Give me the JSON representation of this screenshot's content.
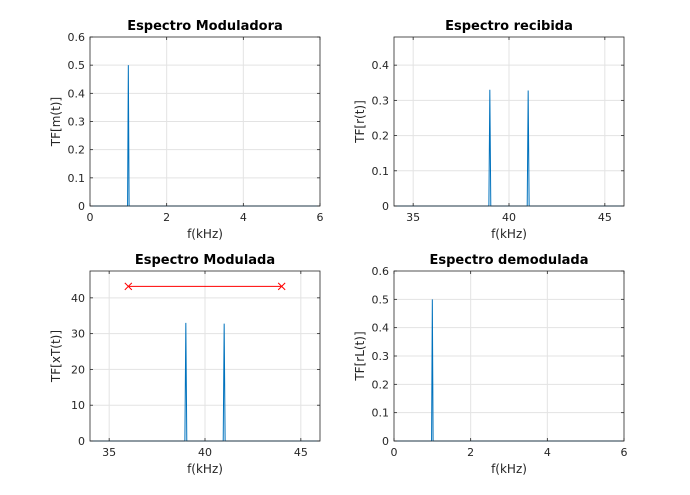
{
  "chart_data": [
    {
      "type": "line",
      "title": "Espectro Moduladora",
      "xlabel": "f(kHz)",
      "ylabel": "TF[m(t)]",
      "xlim": [
        0,
        6
      ],
      "ylim": [
        0,
        0.6
      ],
      "xticks": [
        0,
        2,
        4,
        6
      ],
      "yticks": [
        0,
        0.1,
        0.2,
        0.3,
        0.4,
        0.5,
        0.6
      ],
      "xtick_labels": [
        "0",
        "2",
        "4",
        "6"
      ],
      "ytick_labels": [
        "0",
        "0.1",
        "0.2",
        "0.3",
        "0.4",
        "0.5",
        "0.6"
      ],
      "grid": true,
      "series": [
        {
          "color": "#0072bd",
          "x": [
            0,
            0.98,
            1,
            1.02,
            6
          ],
          "y": [
            0,
            0,
            0.5,
            0,
            0
          ]
        }
      ]
    },
    {
      "type": "line",
      "title": "Espectro recibida",
      "xlabel": "f(kHz)",
      "ylabel": "TF[r(t)]",
      "xlim": [
        34,
        46
      ],
      "ylim": [
        0,
        0.48
      ],
      "xticks": [
        35,
        40,
        45
      ],
      "yticks": [
        0,
        0.1,
        0.2,
        0.3,
        0.4
      ],
      "xtick_labels": [
        "35",
        "40",
        "45"
      ],
      "ytick_labels": [
        "0",
        "0.1",
        "0.2",
        "0.3",
        "0.4"
      ],
      "grid": true,
      "series": [
        {
          "color": "#0072bd",
          "x": [
            34,
            38.95,
            39,
            39.05,
            40.95,
            41,
            41.05,
            46
          ],
          "y": [
            0,
            0,
            0.33,
            0,
            0,
            0.328,
            0,
            0
          ]
        }
      ]
    },
    {
      "type": "line",
      "title": "Espectro Modulada",
      "xlabel": "f(kHz)",
      "ylabel": "TF[xT(t)]",
      "xlim": [
        34,
        46
      ],
      "ylim": [
        0,
        47.5
      ],
      "xticks": [
        35,
        40,
        45
      ],
      "yticks": [
        0,
        10,
        20,
        30,
        40
      ],
      "xtick_labels": [
        "35",
        "40",
        "45"
      ],
      "ytick_labels": [
        "0",
        "10",
        "20",
        "30",
        "40"
      ],
      "grid": true,
      "series": [
        {
          "color": "#0072bd",
          "x": [
            34,
            38.95,
            39,
            39.05,
            40.95,
            41,
            41.05,
            46
          ],
          "y": [
            0,
            0,
            33,
            0,
            0,
            32.8,
            0,
            0
          ]
        },
        {
          "color": "#ff0000",
          "marker": "x",
          "x": [
            36,
            44
          ],
          "y": [
            43.2,
            43.2
          ]
        }
      ]
    },
    {
      "type": "line",
      "title": "Espectro demodulada",
      "xlabel": "f(kHz)",
      "ylabel": "TF[rL(t)]",
      "xlim": [
        0,
        6
      ],
      "ylim": [
        0,
        0.6
      ],
      "xticks": [
        0,
        2,
        4,
        6
      ],
      "yticks": [
        0,
        0.1,
        0.2,
        0.3,
        0.4,
        0.5,
        0.6
      ],
      "xtick_labels": [
        "0",
        "2",
        "4",
        "6"
      ],
      "ytick_labels": [
        "0",
        "0.1",
        "0.2",
        "0.3",
        "0.4",
        "0.5",
        "0.6"
      ],
      "grid": true,
      "series": [
        {
          "color": "#0072bd",
          "x": [
            0,
            0.98,
            1,
            1.02,
            6
          ],
          "y": [
            0,
            0,
            0.5,
            0,
            0
          ]
        }
      ]
    }
  ]
}
